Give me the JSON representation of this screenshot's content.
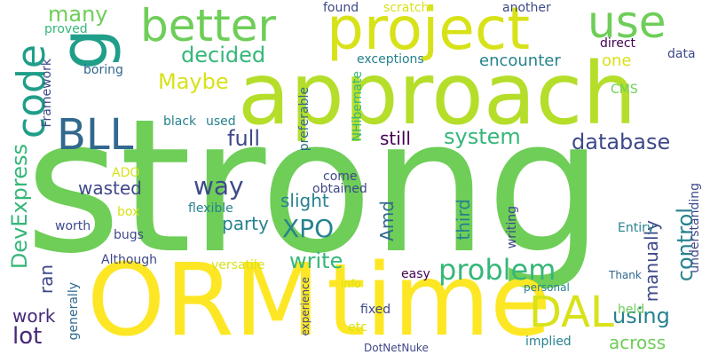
{
  "background": "#ffffff",
  "palette": [
    "#fde725",
    "#b5de2b",
    "#6ece58",
    "#35b779",
    "#1f9e89",
    "#26828e",
    "#31688e",
    "#3e4989",
    "#482878",
    "#440154"
  ],
  "words": [
    {
      "id": "strong",
      "text": "strong",
      "color": "#6ece58"
    },
    {
      "id": "orm",
      "text": "ORM",
      "color": "#fde725"
    },
    {
      "id": "time",
      "text": "time",
      "color": "#fde725"
    },
    {
      "id": "approach",
      "text": "approach",
      "color": "#b5de2b"
    },
    {
      "id": "project",
      "text": "project",
      "color": "#d8e219"
    },
    {
      "id": "better",
      "text": "better",
      "color": "#6ece58"
    },
    {
      "id": "use",
      "text": "use",
      "color": "#6ece58"
    },
    {
      "id": "g",
      "text": "g",
      "color": "#1f9e89"
    },
    {
      "id": "code",
      "text": "code",
      "color": "#1f9e89"
    },
    {
      "id": "bll",
      "text": "BLL",
      "color": "#31688e"
    },
    {
      "id": "dal",
      "text": "DAL",
      "color": "#d8e219"
    },
    {
      "id": "many",
      "text": "many",
      "color": "#6ece58"
    },
    {
      "id": "decided",
      "text": "decided",
      "color": "#35b779"
    },
    {
      "id": "maybe",
      "text": "Maybe",
      "color": "#d8e219"
    },
    {
      "id": "full",
      "text": "full",
      "color": "#3e4989"
    },
    {
      "id": "system",
      "text": "system",
      "color": "#35b779"
    },
    {
      "id": "database",
      "text": "database",
      "color": "#3e4989"
    },
    {
      "id": "devexpress",
      "text": "DevExpress",
      "color": "#35b779"
    },
    {
      "id": "way",
      "text": "way",
      "color": "#3e4989"
    },
    {
      "id": "xpo",
      "text": "XPO",
      "color": "#26828e"
    },
    {
      "id": "write",
      "text": "write",
      "color": "#35b779"
    },
    {
      "id": "problem",
      "text": "problem",
      "color": "#35b779"
    },
    {
      "id": "control",
      "text": "control",
      "color": "#26828e"
    },
    {
      "id": "lot",
      "text": "lot",
      "color": "#482878"
    },
    {
      "id": "using",
      "text": "using",
      "color": "#26828e"
    },
    {
      "id": "across",
      "text": "across",
      "color": "#6ece58"
    },
    {
      "id": "encounter",
      "text": "encounter",
      "color": "#26828e"
    },
    {
      "id": "one",
      "text": "one",
      "color": "#d8e219"
    },
    {
      "id": "still",
      "text": "still",
      "color": "#440154"
    },
    {
      "id": "wasted",
      "text": "wasted",
      "color": "#3e4989"
    },
    {
      "id": "slight",
      "text": "slight",
      "color": "#26828e"
    },
    {
      "id": "party",
      "text": "party",
      "color": "#26828e"
    },
    {
      "id": "amd",
      "text": "Amd",
      "color": "#31688e"
    },
    {
      "id": "third",
      "text": "third",
      "color": "#26828e"
    },
    {
      "id": "manually",
      "text": "manually",
      "color": "#3e4989"
    },
    {
      "id": "work",
      "text": "work",
      "color": "#482878"
    },
    {
      "id": "ran",
      "text": "ran",
      "color": "#3e4989"
    },
    {
      "id": "boring",
      "text": "boring",
      "color": "#31688e"
    },
    {
      "id": "black",
      "text": "black",
      "color": "#26828e"
    },
    {
      "id": "used",
      "text": "used",
      "color": "#26828e"
    },
    {
      "id": "found",
      "text": "found",
      "color": "#3e4989"
    },
    {
      "id": "scratch",
      "text": "scratch",
      "color": "#d8e219"
    },
    {
      "id": "another",
      "text": "another",
      "color": "#3e4989"
    },
    {
      "id": "proved",
      "text": "proved",
      "color": "#35b779"
    },
    {
      "id": "framework",
      "text": "Framework",
      "color": "#3e4989"
    },
    {
      "id": "exceptions",
      "text": "exceptions",
      "color": "#26828e"
    },
    {
      "id": "direct",
      "text": "direct",
      "color": "#440154"
    },
    {
      "id": "data",
      "text": "data",
      "color": "#3e4989"
    },
    {
      "id": "nhibernate",
      "text": "NHibernate",
      "color": "#35b779"
    },
    {
      "id": "cms",
      "text": "CMS",
      "color": "#6ece58"
    },
    {
      "id": "preferable",
      "text": "preferable",
      "color": "#31688e"
    },
    {
      "id": "ado",
      "text": "ADO",
      "color": "#d8e219"
    },
    {
      "id": "box",
      "text": "box",
      "color": "#d8e219"
    },
    {
      "id": "worth",
      "text": "worth",
      "color": "#3e4989"
    },
    {
      "id": "bugs",
      "text": "bugs",
      "color": "#3e4989"
    },
    {
      "id": "come",
      "text": "come",
      "color": "#3e4989"
    },
    {
      "id": "obtained",
      "text": "obtained",
      "color": "#3e4989"
    },
    {
      "id": "flexible",
      "text": "flexible",
      "color": "#26828e"
    },
    {
      "id": "writing",
      "text": "writing",
      "color": "#3e4989"
    },
    {
      "id": "entiry",
      "text": "Entiry",
      "color": "#26828e"
    },
    {
      "id": "understanding",
      "text": "understanding",
      "color": "#3e4989"
    },
    {
      "id": "although",
      "text": "Although",
      "color": "#3e4989"
    },
    {
      "id": "versatile",
      "text": "versatile",
      "color": "#d8e219"
    },
    {
      "id": "easy",
      "text": "easy",
      "color": "#440154"
    },
    {
      "id": "thank",
      "text": "Thank",
      "color": "#31688e"
    },
    {
      "id": "experience",
      "text": "experience",
      "color": "#3e4989"
    },
    {
      "id": "info",
      "text": "info",
      "color": "#d8e219"
    },
    {
      "id": "personal",
      "text": "personal",
      "color": "#26828e"
    },
    {
      "id": "generally",
      "text": "generally",
      "color": "#31688e"
    },
    {
      "id": "fixed",
      "text": "fixed",
      "color": "#3e4989"
    },
    {
      "id": "etc",
      "text": "etc",
      "color": "#d8e219"
    },
    {
      "id": "held",
      "text": "held",
      "color": "#6ece58"
    },
    {
      "id": "implied",
      "text": "implied",
      "color": "#26828e"
    },
    {
      "id": "dotnetnuke",
      "text": "DotNetNuke",
      "color": "#3e4989"
    }
  ]
}
